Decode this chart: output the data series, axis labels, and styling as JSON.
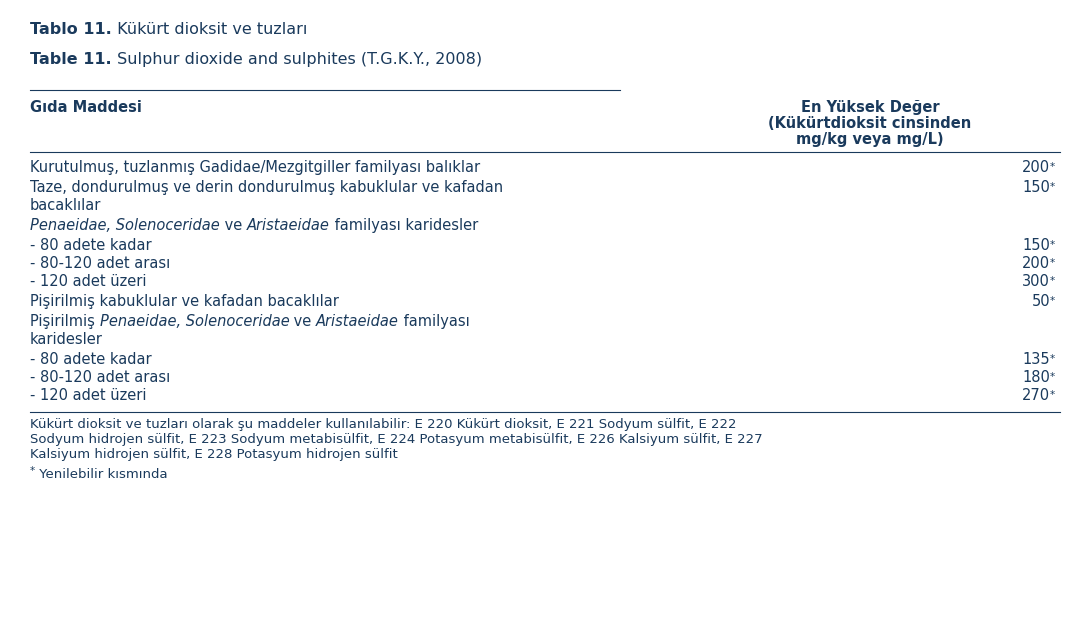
{
  "title1_bold": "Tablo 11.",
  "title1_rest": " Kükürt dioksit ve tuzları",
  "title2_bold": "Table 11.",
  "title2_rest": " Sulphur dioxide and sulphites (T.G.K.Y., 2008)",
  "col1_header": "Gıda Maddesi",
  "col2_header_line1": "En Yüksek Değer",
  "col2_header_line2": "(Kükürtdioksit cinsinden",
  "col2_header_line3": "mg/kg veya mg/L)",
  "text_color": "#1a3a5c",
  "font_size": 10.5,
  "title_font_size": 11.5,
  "footnote_font_size": 9.5,
  "fig_width": 10.9,
  "fig_height": 6.39,
  "dpi": 100
}
